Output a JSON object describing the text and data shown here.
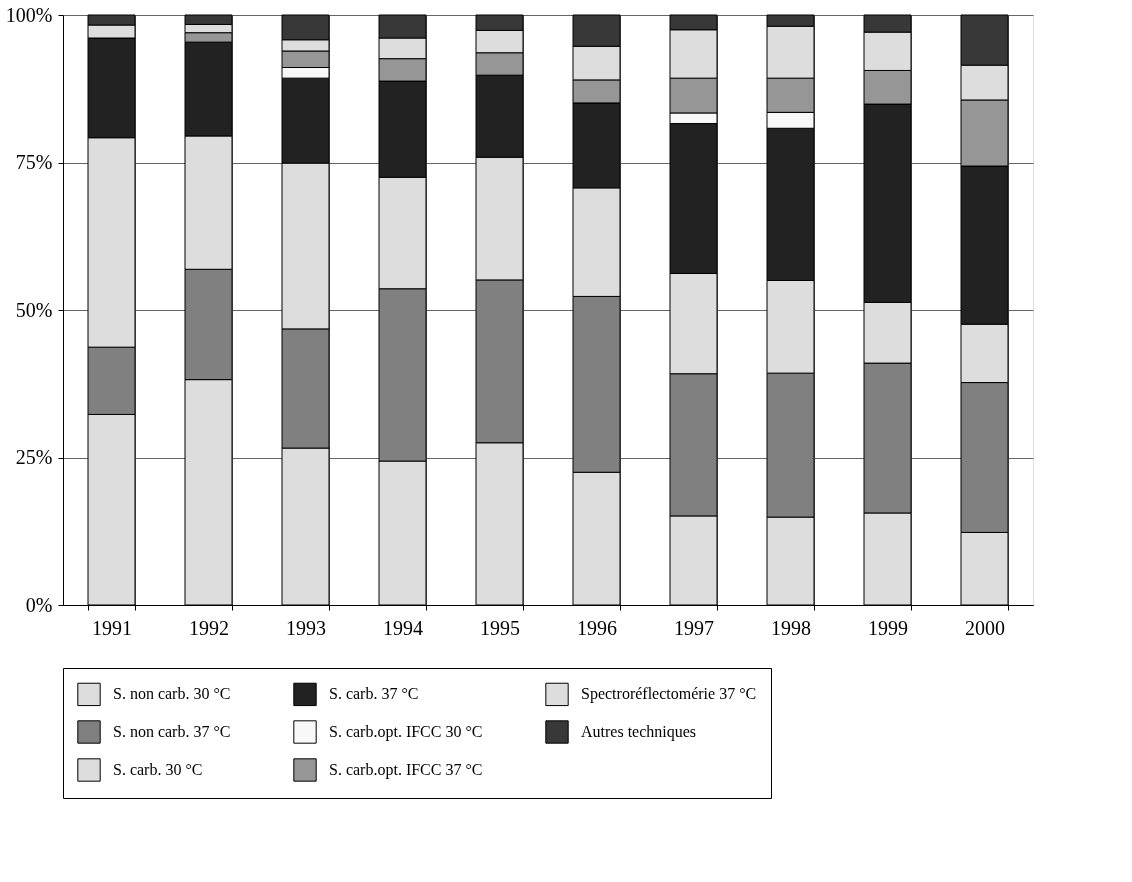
{
  "chart_data": {
    "type": "bar",
    "stacked": true,
    "categories": [
      "1991",
      "1992",
      "1993",
      "1994",
      "1995",
      "1996",
      "1997",
      "1998",
      "1999",
      "2000"
    ],
    "series": [
      {
        "name": "S. non carb. 30 °C",
        "color": "#dddddd",
        "values": [
          32.3,
          38.2,
          26.6,
          24.4,
          27.5,
          22.5,
          15.1,
          14.9,
          15.6,
          12.3
        ]
      },
      {
        "name": "S. non carb. 37 °C",
        "color": "#808080",
        "values": [
          11.4,
          18.7,
          20.2,
          29.2,
          27.6,
          29.8,
          24.1,
          24.4,
          25.4,
          25.4
        ]
      },
      {
        "name": "S. carb. 30 °C",
        "color": "#dddddd",
        "values": [
          35.5,
          22.6,
          28.1,
          18.9,
          20.8,
          18.4,
          17.0,
          15.7,
          10.3,
          9.9
        ]
      },
      {
        "name": "S. carb. 37 °C",
        "color": "#222222",
        "values": [
          16.9,
          15.9,
          14.4,
          16.3,
          13.9,
          14.4,
          25.4,
          25.8,
          33.6,
          26.8
        ]
      },
      {
        "name": "S. carb.opt. IFCC 30 °C",
        "color": "#f8f8f8",
        "values": [
          0,
          0,
          1.8,
          0,
          0,
          0,
          1.8,
          2.7,
          0,
          0
        ]
      },
      {
        "name": "S. carb.opt. IFCC 37 °C",
        "color": "#969696",
        "values": [
          0,
          1.6,
          2.8,
          3.8,
          3.8,
          3.9,
          5.9,
          5.8,
          5.7,
          11.2
        ]
      },
      {
        "name": "Spectroréflectomérie 37 °C",
        "color": "#dddddd",
        "values": [
          2.2,
          1.4,
          1.9,
          3.5,
          3.8,
          5.7,
          8.2,
          8.8,
          6.5,
          5.9
        ]
      },
      {
        "name": "Autres techniques",
        "color": "#383838",
        "values": [
          1.7,
          1.6,
          4.2,
          3.9,
          2.6,
          5.3,
          2.5,
          1.9,
          2.9,
          8.5
        ]
      }
    ],
    "ylim": [
      0,
      100
    ],
    "yticks": [
      {
        "value": 0,
        "label": "0%"
      },
      {
        "value": 25,
        "label": "25%"
      },
      {
        "value": 50,
        "label": "50%"
      },
      {
        "value": 75,
        "label": "75%"
      },
      {
        "value": 100,
        "label": "100%"
      }
    ],
    "grid": true,
    "legend": "bottom"
  }
}
